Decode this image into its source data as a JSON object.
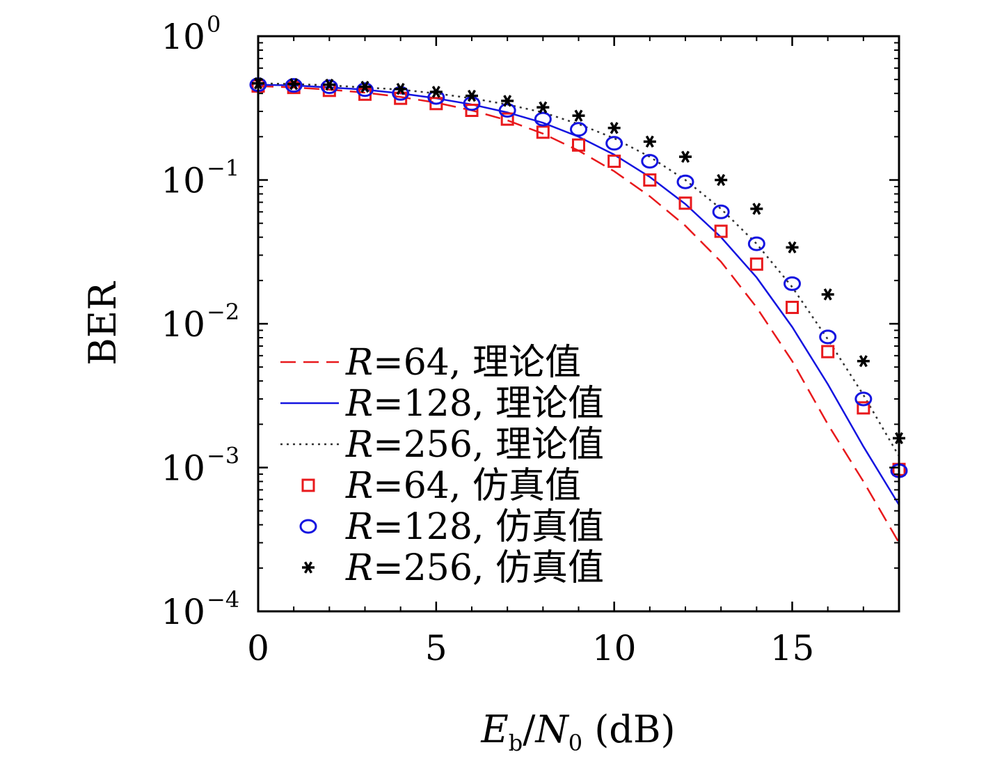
{
  "chart_data": {
    "type": "line",
    "xlabel": "E_b/N_0 (dB)",
    "xlabel_parts": {
      "main1": "E",
      "sub1": "b",
      "slash": "/",
      "main2": "N",
      "sub2": "0",
      "unit": " (dB)"
    },
    "ylabel": "BER",
    "xlim": [
      0,
      18
    ],
    "ylim": [
      0.0001,
      1
    ],
    "y_scale": "log",
    "x_ticks": [
      {
        "value": 0,
        "label": "0"
      },
      {
        "value": 5,
        "label": "5"
      },
      {
        "value": 10,
        "label": "10"
      },
      {
        "value": 15,
        "label": "15"
      }
    ],
    "y_ticks": [
      {
        "value": 1,
        "base": "10",
        "exp": "0"
      },
      {
        "value": 0.1,
        "base": "10",
        "exp": "−1"
      },
      {
        "value": 0.01,
        "base": "10",
        "exp": "−2"
      },
      {
        "value": 0.001,
        "base": "10",
        "exp": "−3"
      },
      {
        "value": 0.0001,
        "base": "10",
        "exp": "−4"
      }
    ],
    "grid": false,
    "legend_position": "lower-left",
    "series": [
      {
        "name": "R=64, 理论值",
        "label_var": "R",
        "label_rest": "=64, 理论值",
        "kind": "line",
        "style": "dashed",
        "color": "#e8191c",
        "x": [
          0,
          1,
          2,
          3,
          4,
          5,
          6,
          7,
          8,
          9,
          10,
          11,
          12,
          13,
          14,
          15,
          16,
          17,
          18
        ],
        "y": [
          0.45,
          0.44,
          0.425,
          0.405,
          0.378,
          0.345,
          0.305,
          0.26,
          0.21,
          0.16,
          0.115,
          0.077,
          0.048,
          0.027,
          0.013,
          0.0055,
          0.002,
          0.0008,
          0.0003
        ]
      },
      {
        "name": "R=128, 理论值",
        "label_var": "R",
        "label_rest": "=128, 理论值",
        "kind": "line",
        "style": "solid",
        "color": "#1414e0",
        "x": [
          0,
          1,
          2,
          3,
          4,
          5,
          6,
          7,
          8,
          9,
          10,
          11,
          12,
          13,
          14,
          15,
          16,
          17,
          18
        ],
        "y": [
          0.46,
          0.455,
          0.44,
          0.425,
          0.4,
          0.37,
          0.335,
          0.295,
          0.25,
          0.2,
          0.15,
          0.105,
          0.068,
          0.04,
          0.021,
          0.0095,
          0.0038,
          0.0014,
          0.00055
        ]
      },
      {
        "name": "R=256, 理论值",
        "label_var": "R",
        "label_rest": "=256, 理论值",
        "kind": "line",
        "style": "dotted",
        "color": "#333333",
        "x": [
          0,
          1,
          2,
          3,
          4,
          5,
          6,
          7,
          8,
          9,
          10,
          11,
          12,
          13,
          14,
          15,
          16,
          17,
          18
        ],
        "y": [
          0.47,
          0.465,
          0.455,
          0.44,
          0.425,
          0.4,
          0.37,
          0.335,
          0.295,
          0.245,
          0.195,
          0.145,
          0.1,
          0.063,
          0.036,
          0.018,
          0.0078,
          0.0032,
          0.0012
        ]
      },
      {
        "name": "R=64, 仿真值",
        "label_var": "R",
        "label_rest": "=64, 仿真值",
        "kind": "marker",
        "marker": "square",
        "color": "#e8191c",
        "x": [
          0,
          1,
          2,
          3,
          4,
          5,
          6,
          7,
          8,
          9,
          10,
          11,
          12,
          13,
          14,
          15,
          16,
          17,
          18
        ],
        "y": [
          0.45,
          0.44,
          0.42,
          0.395,
          0.37,
          0.34,
          0.305,
          0.265,
          0.215,
          0.175,
          0.135,
          0.1,
          0.069,
          0.044,
          0.026,
          0.013,
          0.0064,
          0.0026,
          0.00097
        ]
      },
      {
        "name": "R=128, 仿真值",
        "label_var": "R",
        "label_rest": "=128, 仿真值",
        "kind": "marker",
        "marker": "circle",
        "color": "#1414e0",
        "x": [
          0,
          1,
          2,
          3,
          4,
          5,
          6,
          7,
          8,
          9,
          10,
          11,
          12,
          13,
          14,
          15,
          16,
          17,
          18
        ],
        "y": [
          0.46,
          0.455,
          0.445,
          0.425,
          0.4,
          0.375,
          0.34,
          0.305,
          0.265,
          0.225,
          0.18,
          0.135,
          0.097,
          0.06,
          0.036,
          0.019,
          0.0081,
          0.003,
          0.00095
        ]
      },
      {
        "name": "R=256, 仿真值",
        "label_var": "R",
        "label_rest": "=256, 仿真值",
        "kind": "marker",
        "marker": "asterisk",
        "color": "#000000",
        "x": [
          0,
          1,
          2,
          3,
          4,
          5,
          6,
          7,
          8,
          9,
          10,
          11,
          12,
          13,
          14,
          15,
          16,
          17,
          18
        ],
        "y": [
          0.47,
          0.465,
          0.46,
          0.445,
          0.43,
          0.41,
          0.385,
          0.355,
          0.32,
          0.28,
          0.23,
          0.185,
          0.145,
          0.1,
          0.063,
          0.034,
          0.016,
          0.0055,
          0.0016
        ]
      }
    ]
  }
}
